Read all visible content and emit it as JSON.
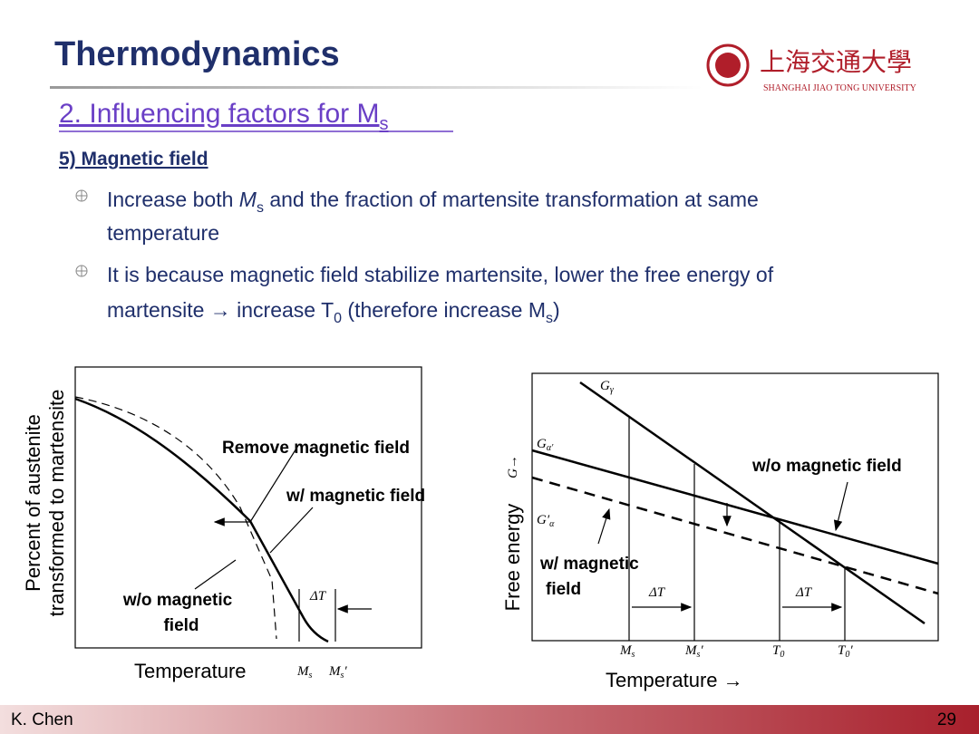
{
  "header": {
    "title": "Thermodynamics",
    "logo_text": "上海交通大學",
    "logo_subtitle": "SHANGHAI JIAO TONG UNIVERSITY"
  },
  "section": {
    "text": "2. Influencing factors for M",
    "subscript": "s"
  },
  "subsection": "5) Magnetic field",
  "bullets": [
    {
      "lines": [
        [
          "Increase both ",
          "M",
          "s",
          " and the fraction of martensite transformation at same"
        ],
        [
          "temperature"
        ]
      ]
    },
    {
      "lines": [
        [
          "It is because magnetic field stabilize martensite, lower the free energy of"
        ],
        [
          "martensite → increase T",
          "0",
          " (therefore increase M",
          "s",
          ")"
        ]
      ]
    }
  ],
  "left_figure": {
    "y_label": [
      "Percent of austenite",
      "transformed to martensite"
    ],
    "x_label": "Temperature",
    "remove_label": "Remove magnetic field",
    "with_label": "w/ magnetic field",
    "without_label": [
      "w/o magnetic",
      "field"
    ],
    "delta_t": "ΔT",
    "ms": {
      "base": "M",
      "sub": "s"
    },
    "ms_prime": {
      "base": "M",
      "sub": "s",
      "prime": "′"
    }
  },
  "right_figure": {
    "y_label": "Free energy",
    "y_symbol": "G→",
    "x_label": "Temperature →",
    "g_gamma": {
      "base": "G",
      "sub": "γ"
    },
    "g_alpha_prime": {
      "base": "G",
      "sub": "α′"
    },
    "g_prime_alpha": {
      "base": "G′",
      "sub": "α"
    },
    "without_label": "w/o magnetic field",
    "with_label": [
      "w/ magnetic",
      "field"
    ],
    "delta_t": [
      "ΔT",
      "ΔT"
    ],
    "ms": {
      "base": "M",
      "sub": "s"
    },
    "ms_prime": {
      "base": "M",
      "sub": "s",
      "prime": "′"
    },
    "t0": {
      "base": "T",
      "sub": "0"
    },
    "t0_prime": {
      "base": "T",
      "sub": "0",
      "prime": "′"
    }
  },
  "footer": {
    "author": "K. Chen",
    "page": "29"
  }
}
